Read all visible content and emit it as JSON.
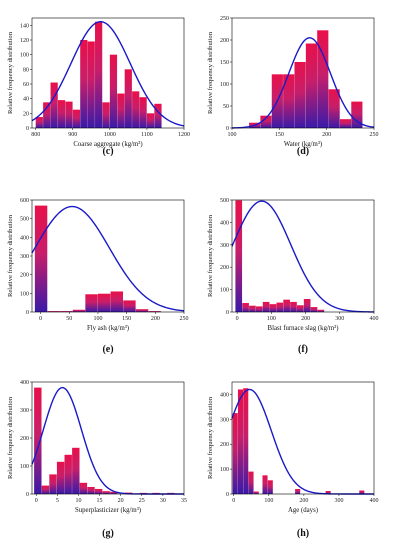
{
  "chart_data": [
    {
      "id": "c",
      "type": "bar",
      "panel_label": "(c)",
      "xlabel": "Coarse aggregate (kg/m³)",
      "ylabel": "Relative frequency distribution",
      "xlim": [
        790,
        1200
      ],
      "ylim": [
        0,
        150
      ],
      "xticks": [
        800,
        900,
        1000,
        1100,
        1200
      ],
      "yticks": [
        0,
        20,
        40,
        60,
        80,
        100,
        120,
        140
      ],
      "bars": [
        {
          "x0": 800,
          "x1": 820,
          "y": 15
        },
        {
          "x0": 820,
          "x1": 840,
          "y": 35
        },
        {
          "x0": 840,
          "x1": 860,
          "y": 62
        },
        {
          "x0": 860,
          "x1": 880,
          "y": 38
        },
        {
          "x0": 880,
          "x1": 900,
          "y": 36
        },
        {
          "x0": 900,
          "x1": 920,
          "y": 25
        },
        {
          "x0": 920,
          "x1": 940,
          "y": 120
        },
        {
          "x0": 940,
          "x1": 960,
          "y": 118
        },
        {
          "x0": 960,
          "x1": 980,
          "y": 145
        },
        {
          "x0": 980,
          "x1": 1000,
          "y": 35
        },
        {
          "x0": 1000,
          "x1": 1020,
          "y": 100
        },
        {
          "x0": 1020,
          "x1": 1040,
          "y": 47
        },
        {
          "x0": 1040,
          "x1": 1060,
          "y": 80
        },
        {
          "x0": 1060,
          "x1": 1080,
          "y": 50
        },
        {
          "x0": 1080,
          "x1": 1100,
          "y": 42
        },
        {
          "x0": 1100,
          "x1": 1120,
          "y": 20
        },
        {
          "x0": 1120,
          "x1": 1140,
          "y": 33
        }
      ],
      "curve": {
        "type": "normal",
        "mean": 975,
        "sd": 80,
        "peak": 145
      }
    },
    {
      "id": "d",
      "type": "bar",
      "panel_label": "(d)",
      "xlabel": "Water (kg/m³)",
      "ylabel": "Relative frequency distribution",
      "xlim": [
        100,
        250
      ],
      "ylim": [
        0,
        250
      ],
      "xticks": [
        100,
        150,
        200,
        250
      ],
      "yticks": [
        0,
        50,
        100,
        150,
        200,
        250
      ],
      "bars": [
        {
          "x0": 118,
          "x1": 130,
          "y": 12
        },
        {
          "x0": 130,
          "x1": 142,
          "y": 28
        },
        {
          "x0": 142,
          "x1": 154,
          "y": 122
        },
        {
          "x0": 154,
          "x1": 166,
          "y": 122
        },
        {
          "x0": 166,
          "x1": 178,
          "y": 150
        },
        {
          "x0": 178,
          "x1": 190,
          "y": 192
        },
        {
          "x0": 190,
          "x1": 202,
          "y": 222
        },
        {
          "x0": 202,
          "x1": 214,
          "y": 88
        },
        {
          "x0": 214,
          "x1": 226,
          "y": 20
        },
        {
          "x0": 226,
          "x1": 238,
          "y": 60
        }
      ],
      "curve": {
        "type": "normal",
        "mean": 182,
        "sd": 22,
        "peak": 205
      }
    },
    {
      "id": "e",
      "type": "bar",
      "panel_label": "(e)",
      "xlabel": "Fly ash (kg/m³)",
      "ylabel": "Relative frequency distribution",
      "xlim": [
        -15,
        250
      ],
      "ylim": [
        0,
        600
      ],
      "xticks": [
        0,
        50,
        100,
        150,
        200,
        250
      ],
      "yticks": [
        0,
        100,
        200,
        300,
        400,
        500,
        600
      ],
      "bars": [
        {
          "x0": -10,
          "x1": 12,
          "y": 570
        },
        {
          "x0": 12,
          "x1": 34,
          "y": 5
        },
        {
          "x0": 34,
          "x1": 56,
          "y": 5
        },
        {
          "x0": 56,
          "x1": 78,
          "y": 12
        },
        {
          "x0": 78,
          "x1": 100,
          "y": 95
        },
        {
          "x0": 100,
          "x1": 122,
          "y": 98
        },
        {
          "x0": 122,
          "x1": 144,
          "y": 110
        },
        {
          "x0": 144,
          "x1": 166,
          "y": 62
        },
        {
          "x0": 166,
          "x1": 188,
          "y": 15
        },
        {
          "x0": 188,
          "x1": 210,
          "y": 5
        }
      ],
      "curve": {
        "type": "normal",
        "mean": 55,
        "sd": 65,
        "peak": 565
      }
    },
    {
      "id": "f",
      "type": "bar",
      "panel_label": "(f)",
      "xlabel": "Blast furnace slag (kg/m³)",
      "ylabel": "Relative frequency distribution",
      "xlim": [
        -15,
        400
      ],
      "ylim": [
        0,
        500
      ],
      "xticks": [
        0,
        100,
        200,
        300,
        400
      ],
      "yticks": [
        0,
        100,
        200,
        300,
        400,
        500
      ],
      "bars": [
        {
          "x0": -5,
          "x1": 15,
          "y": 498
        },
        {
          "x0": 15,
          "x1": 35,
          "y": 40
        },
        {
          "x0": 35,
          "x1": 55,
          "y": 28
        },
        {
          "x0": 55,
          "x1": 75,
          "y": 25
        },
        {
          "x0": 75,
          "x1": 95,
          "y": 45
        },
        {
          "x0": 95,
          "x1": 115,
          "y": 35
        },
        {
          "x0": 115,
          "x1": 135,
          "y": 42
        },
        {
          "x0": 135,
          "x1": 155,
          "y": 55
        },
        {
          "x0": 155,
          "x1": 175,
          "y": 45
        },
        {
          "x0": 175,
          "x1": 195,
          "y": 30
        },
        {
          "x0": 195,
          "x1": 215,
          "y": 58
        },
        {
          "x0": 215,
          "x1": 235,
          "y": 22
        },
        {
          "x0": 235,
          "x1": 255,
          "y": 10
        },
        {
          "x0": 335,
          "x1": 355,
          "y": 4
        }
      ],
      "curve": {
        "type": "normal",
        "mean": 72,
        "sd": 85,
        "peak": 495
      }
    },
    {
      "id": "g",
      "type": "bar",
      "panel_label": "(g)",
      "xlabel": "Superplasticizer (kg/m³)",
      "ylabel": "Relative frequency distribution",
      "xlim": [
        -1,
        35
      ],
      "ylim": [
        0,
        400
      ],
      "xticks": [
        0,
        5,
        10,
        15,
        20,
        25,
        30,
        35
      ],
      "yticks": [
        0,
        100,
        200,
        300,
        400
      ],
      "bars": [
        {
          "x0": -0.5,
          "x1": 1.3,
          "y": 380
        },
        {
          "x0": 1.3,
          "x1": 3.1,
          "y": 30
        },
        {
          "x0": 3.1,
          "x1": 4.9,
          "y": 70
        },
        {
          "x0": 4.9,
          "x1": 6.7,
          "y": 115
        },
        {
          "x0": 6.7,
          "x1": 8.5,
          "y": 140
        },
        {
          "x0": 8.5,
          "x1": 10.3,
          "y": 165
        },
        {
          "x0": 10.3,
          "x1": 12.1,
          "y": 40
        },
        {
          "x0": 12.1,
          "x1": 13.9,
          "y": 25
        },
        {
          "x0": 13.9,
          "x1": 15.7,
          "y": 18
        },
        {
          "x0": 15.7,
          "x1": 17.5,
          "y": 10
        },
        {
          "x0": 17.5,
          "x1": 19.3,
          "y": 8
        },
        {
          "x0": 21.0,
          "x1": 22.8,
          "y": 5
        },
        {
          "x0": 24.5,
          "x1": 26.3,
          "y": 4
        },
        {
          "x0": 27.5,
          "x1": 29.3,
          "y": 4
        },
        {
          "x0": 31.0,
          "x1": 32.8,
          "y": 4
        }
      ],
      "curve": {
        "type": "normal",
        "mean": 6.2,
        "sd": 4.5,
        "peak": 380
      }
    },
    {
      "id": "h",
      "type": "bar",
      "panel_label": "(h)",
      "xlabel": "Age (days)",
      "ylabel": "Relative frequency distribution",
      "xlim": [
        -5,
        400
      ],
      "ylim": [
        0,
        450
      ],
      "xticks": [
        0,
        100,
        200,
        300,
        400
      ],
      "yticks": [
        0,
        100,
        200,
        300,
        400
      ],
      "bars": [
        {
          "x0": -3,
          "x1": 12,
          "y": 325
        },
        {
          "x0": 12,
          "x1": 27,
          "y": 420
        },
        {
          "x0": 27,
          "x1": 42,
          "y": 425
        },
        {
          "x0": 42,
          "x1": 57,
          "y": 90
        },
        {
          "x0": 57,
          "x1": 72,
          "y": 10
        },
        {
          "x0": 82,
          "x1": 97,
          "y": 75
        },
        {
          "x0": 97,
          "x1": 112,
          "y": 55
        },
        {
          "x0": 175,
          "x1": 190,
          "y": 20
        },
        {
          "x0": 262,
          "x1": 277,
          "y": 12
        },
        {
          "x0": 358,
          "x1": 373,
          "y": 14
        }
      ],
      "curve": {
        "type": "normal",
        "mean": 45,
        "sd": 62,
        "peak": 420
      }
    }
  ]
}
